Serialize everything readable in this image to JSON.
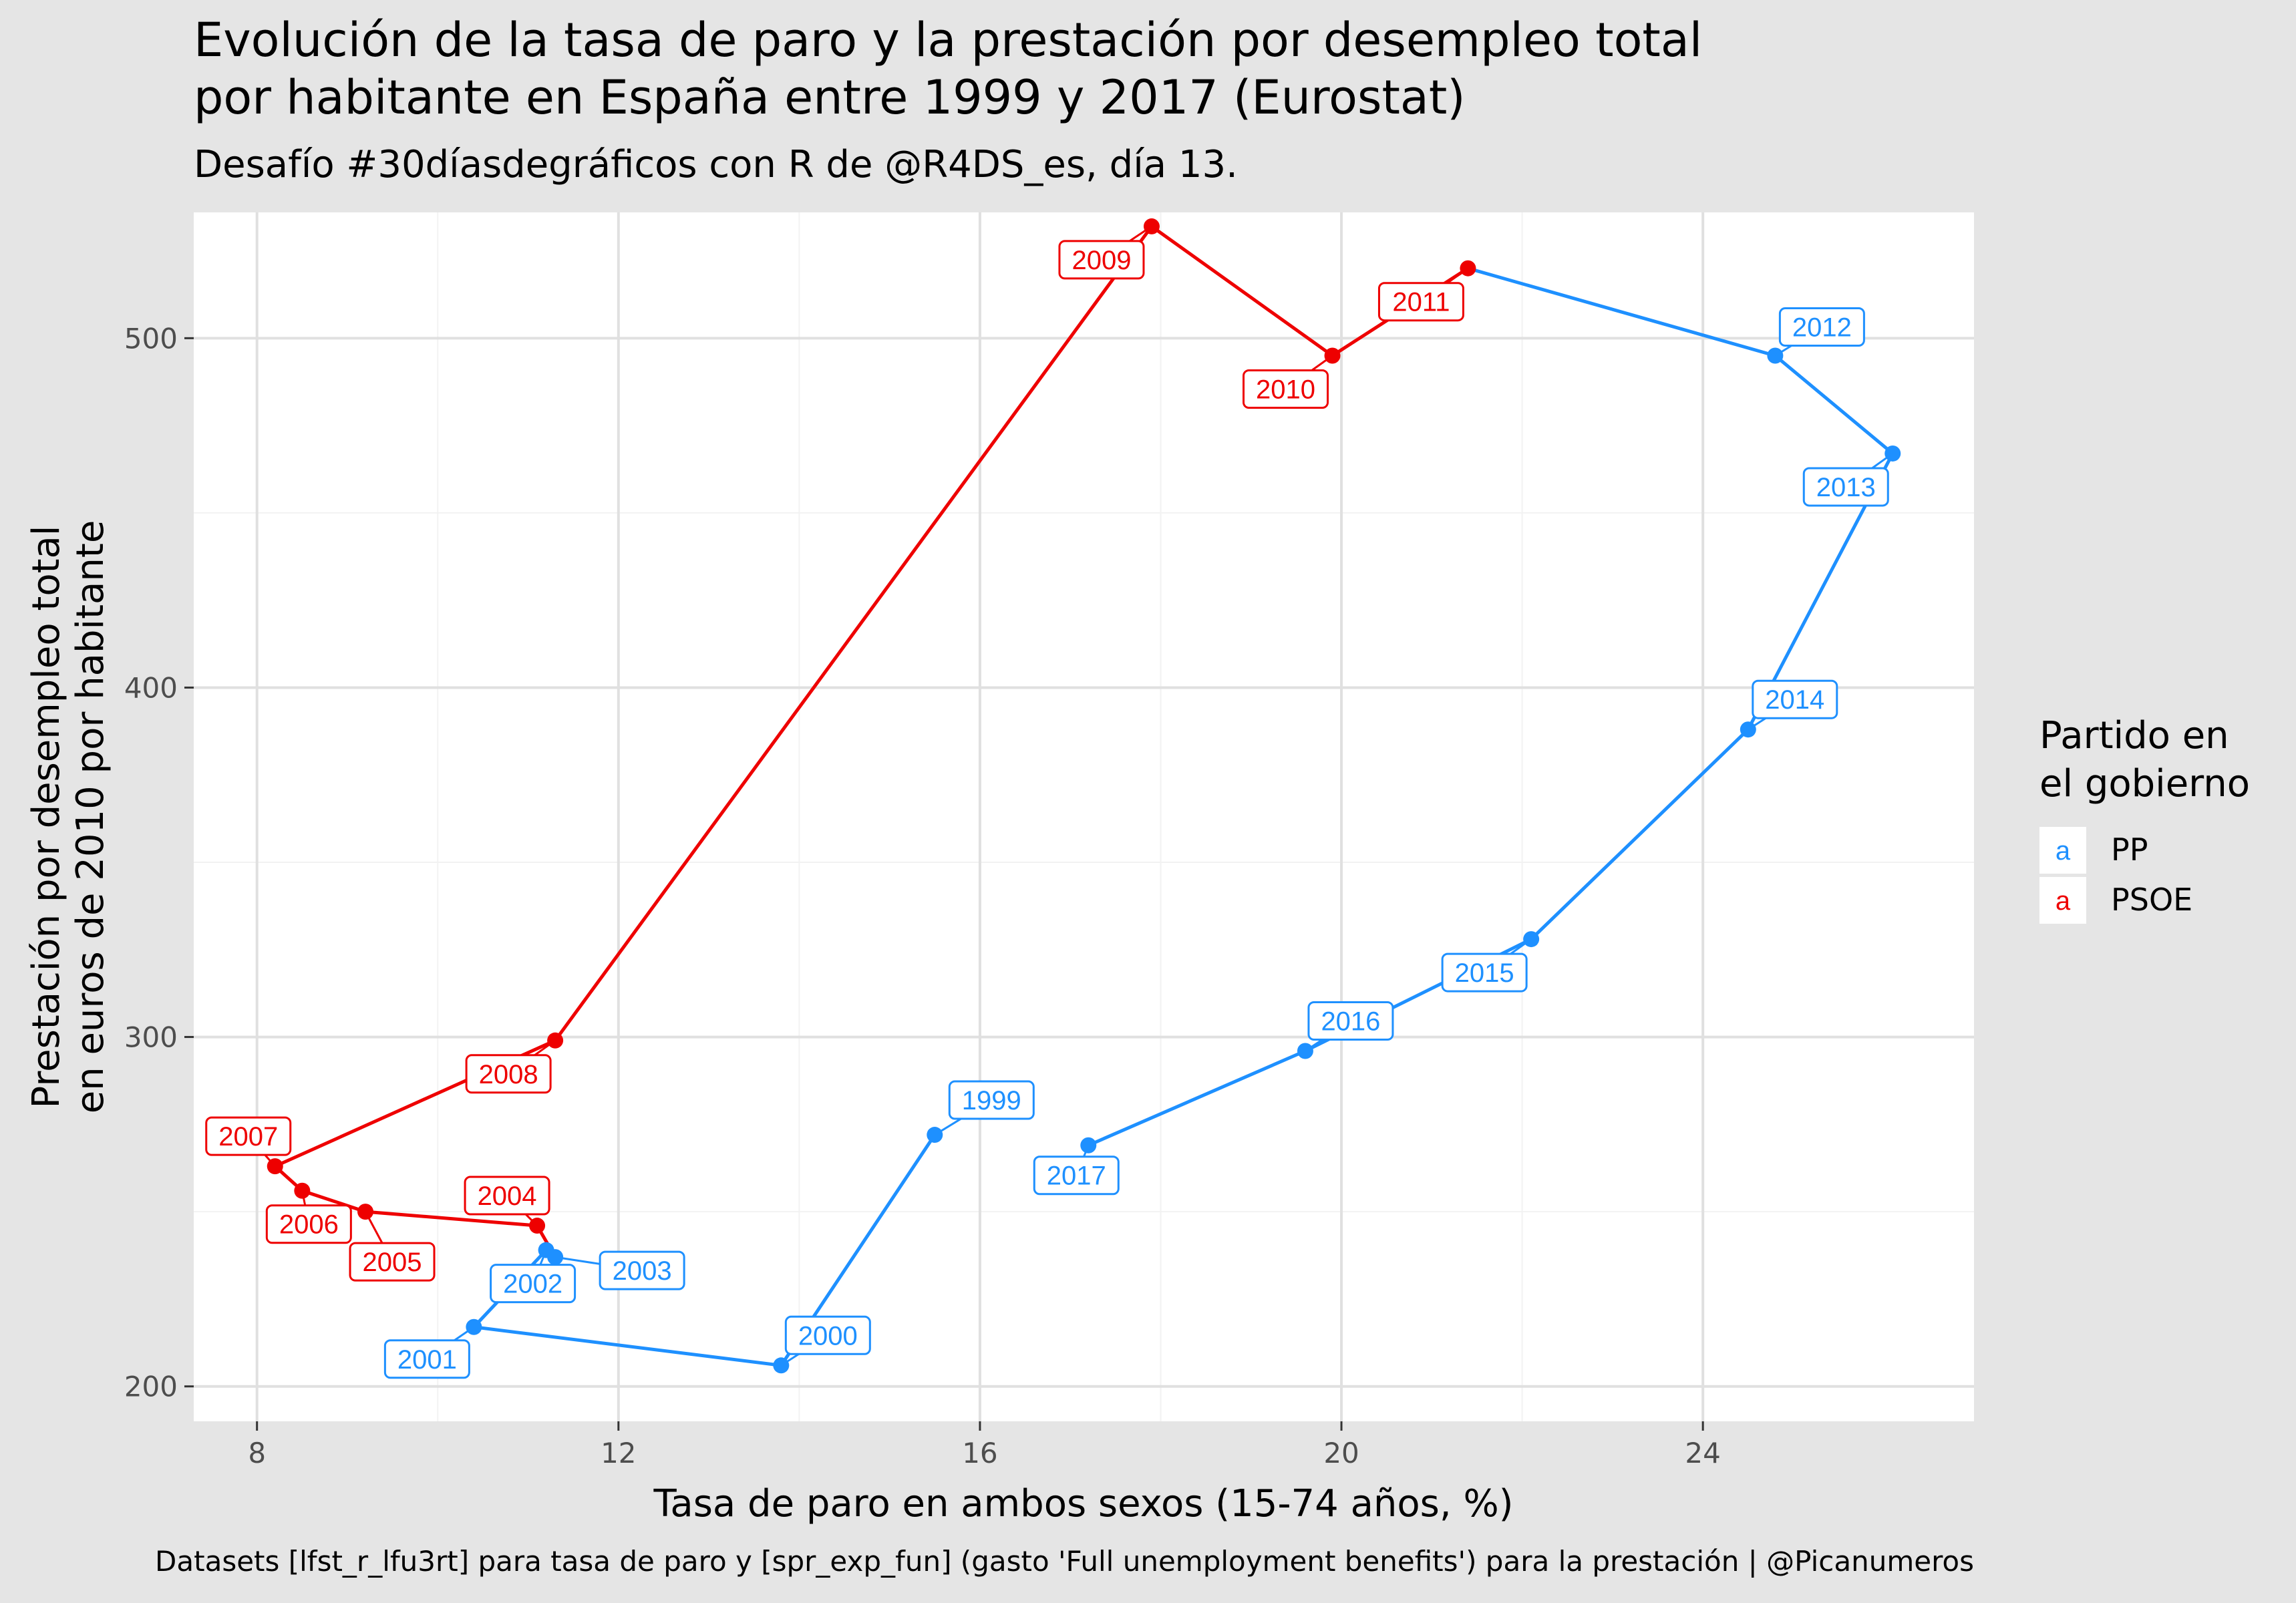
{
  "chart_data": {
    "type": "scatter",
    "title_lines": [
      "Evolución de la tasa de paro y la prestación por desempleo total",
      "por habitante en España entre 1999 y 2017 (Eurostat)"
    ],
    "subtitle": "Desafío #30díasdegráficos con R de @R4DS_es, día 13.",
    "caption": "Datasets [lfst_r_lfu3rt] para tasa de paro y [spr_exp_fun] (gasto 'Full unemployment benefits') para la prestación | @Picanumeros",
    "xlabel": "Tasa de paro en ambos sexos (15-74 años, %)",
    "ylabel_lines": [
      "Prestación por desempleo total",
      "en euros de 2010 por habitante"
    ],
    "xlim": [
      7.3,
      27.0
    ],
    "ylim": [
      190,
      536
    ],
    "x_ticks": [
      8,
      12,
      16,
      20,
      24
    ],
    "y_ticks": [
      200,
      300,
      400,
      500
    ],
    "grid": true,
    "legend": {
      "title_lines": [
        "Partido en",
        "el gobierno"
      ],
      "position": "right",
      "key_glyph": "a",
      "entries": [
        {
          "name": "PP",
          "color": "#1e90ff"
        },
        {
          "name": "PSOE",
          "color": "#ee0000"
        }
      ]
    },
    "colors": {
      "PP": "#1e90ff",
      "PSOE": "#ee0000"
    },
    "points": [
      {
        "year": "1999",
        "x": 15.5,
        "y": 272,
        "party": "PP"
      },
      {
        "year": "2000",
        "x": 13.8,
        "y": 206,
        "party": "PP"
      },
      {
        "year": "2001",
        "x": 10.4,
        "y": 217,
        "party": "PP"
      },
      {
        "year": "2002",
        "x": 11.2,
        "y": 239,
        "party": "PP"
      },
      {
        "year": "2003",
        "x": 11.3,
        "y": 237,
        "party": "PP"
      },
      {
        "year": "2004",
        "x": 11.1,
        "y": 246,
        "party": "PSOE"
      },
      {
        "year": "2005",
        "x": 9.2,
        "y": 250,
        "party": "PSOE"
      },
      {
        "year": "2006",
        "x": 8.5,
        "y": 256,
        "party": "PSOE"
      },
      {
        "year": "2007",
        "x": 8.2,
        "y": 263,
        "party": "PSOE"
      },
      {
        "year": "2008",
        "x": 11.3,
        "y": 299,
        "party": "PSOE"
      },
      {
        "year": "2009",
        "x": 17.9,
        "y": 532,
        "party": "PSOE"
      },
      {
        "year": "2010",
        "x": 19.9,
        "y": 495,
        "party": "PSOE"
      },
      {
        "year": "2011",
        "x": 21.4,
        "y": 520,
        "party": "PSOE"
      },
      {
        "year": "2012",
        "x": 24.8,
        "y": 495,
        "party": "PP"
      },
      {
        "year": "2013",
        "x": 26.1,
        "y": 467,
        "party": "PP"
      },
      {
        "year": "2014",
        "x": 24.5,
        "y": 388,
        "party": "PP"
      },
      {
        "year": "2015",
        "x": 22.1,
        "y": 328,
        "party": "PP"
      },
      {
        "year": "2016",
        "x": 19.6,
        "y": 296,
        "party": "PP"
      },
      {
        "year": "2017",
        "x": 17.2,
        "y": 269,
        "party": "PP"
      }
    ]
  }
}
